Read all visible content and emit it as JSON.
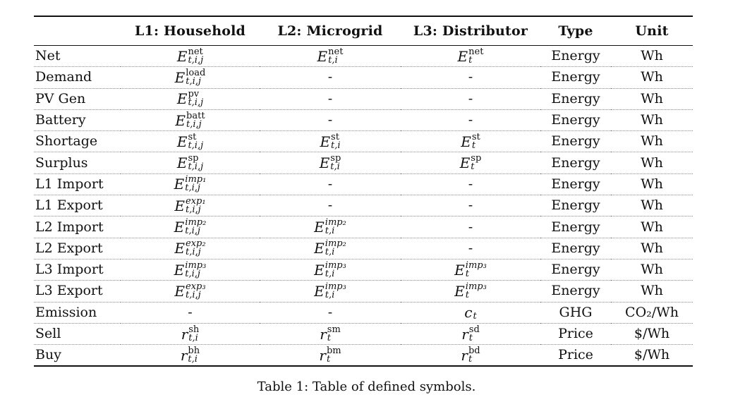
{
  "table": {
    "headers": [
      "",
      "L1: Household",
      "L2: Microgrid",
      "L3: Distributor",
      "Type",
      "Unit"
    ],
    "dash": "-",
    "rows": [
      {
        "label": "Net",
        "cells": [
          {
            "base": "E",
            "sup": "net",
            "sub": "t,i,j"
          },
          {
            "base": "E",
            "sup": "net",
            "sub": "t,i"
          },
          {
            "base": "E",
            "sup": "net",
            "sub": "t"
          }
        ],
        "type": "Energy",
        "unit": "Wh"
      },
      {
        "label": "Demand",
        "cells": [
          {
            "base": "E",
            "sup": "load",
            "sub": "t,i,j"
          },
          null,
          null
        ],
        "type": "Energy",
        "unit": "Wh"
      },
      {
        "label": "PV Gen",
        "cells": [
          {
            "base": "E",
            "sup": "pv",
            "sub": "t,i,j"
          },
          null,
          null
        ],
        "type": "Energy",
        "unit": "Wh"
      },
      {
        "label": "Battery",
        "cells": [
          {
            "base": "E",
            "sup": "batt",
            "sub": "t,i,j"
          },
          null,
          null
        ],
        "type": "Energy",
        "unit": "Wh"
      },
      {
        "label": "Shortage",
        "cells": [
          {
            "base": "E",
            "sup": "st",
            "sub": "t,i,j"
          },
          {
            "base": "E",
            "sup": "st",
            "sub": "t,i"
          },
          {
            "base": "E",
            "sup": "st",
            "sub": "t"
          }
        ],
        "type": "Energy",
        "unit": "Wh"
      },
      {
        "label": "Surplus",
        "cells": [
          {
            "base": "E",
            "sup": "sp",
            "sub": "t,i,j"
          },
          {
            "base": "E",
            "sup": "sp",
            "sub": "t,i"
          },
          {
            "base": "E",
            "sup": "sp",
            "sub": "t"
          }
        ],
        "type": "Energy",
        "unit": "Wh"
      },
      {
        "label": "L1 Import",
        "cells": [
          {
            "base": "E",
            "sup": "imp₁",
            "sub": "t,i,j",
            "italic_sup": true
          },
          null,
          null
        ],
        "type": "Energy",
        "unit": "Wh"
      },
      {
        "label": "L1 Export",
        "cells": [
          {
            "base": "E",
            "sup": "exp₁",
            "sub": "t,i,j",
            "italic_sup": true
          },
          null,
          null
        ],
        "type": "Energy",
        "unit": "Wh"
      },
      {
        "label": "L2 Import",
        "cells": [
          {
            "base": "E",
            "sup": "imp₂",
            "sub": "t,i,j",
            "italic_sup": true
          },
          {
            "base": "E",
            "sup": "imp₂",
            "sub": "t,i",
            "italic_sup": true
          },
          null
        ],
        "type": "Energy",
        "unit": "Wh"
      },
      {
        "label": "L2 Export",
        "cells": [
          {
            "base": "E",
            "sup": "exp₂",
            "sub": "t,i,j",
            "italic_sup": true
          },
          {
            "base": "E",
            "sup": "imp₂",
            "sub": "t,i",
            "italic_sup": true
          },
          null
        ],
        "type": "Energy",
        "unit": "Wh"
      },
      {
        "label": "L3 Import",
        "cells": [
          {
            "base": "E",
            "sup": "imp₃",
            "sub": "t,i,j",
            "italic_sup": true
          },
          {
            "base": "E",
            "sup": "imp₃",
            "sub": "t,i",
            "italic_sup": true
          },
          {
            "base": "E",
            "sup": "imp₃",
            "sub": "t",
            "italic_sup": true
          }
        ],
        "type": "Energy",
        "unit": "Wh"
      },
      {
        "label": "L3 Export",
        "cells": [
          {
            "base": "E",
            "sup": "exp₃",
            "sub": "t,i,j",
            "italic_sup": true
          },
          {
            "base": "E",
            "sup": "imp₃",
            "sub": "t,i",
            "italic_sup": true
          },
          {
            "base": "E",
            "sup": "imp₃",
            "sub": "t",
            "italic_sup": true
          }
        ],
        "type": "Energy",
        "unit": "Wh"
      },
      {
        "label": "Emission",
        "cells": [
          null,
          null,
          {
            "base": "c",
            "sup": "",
            "sub": "t"
          }
        ],
        "type": "GHG",
        "unit": "CO₂/Wh"
      },
      {
        "label": "Sell",
        "cells": [
          {
            "base": "r",
            "sup": "sh",
            "sub": "t,i"
          },
          {
            "base": "r",
            "sup": "sm",
            "sub": "t"
          },
          {
            "base": "r",
            "sup": "sd",
            "sub": "t"
          }
        ],
        "type": "Price",
        "unit": "$/Wh"
      },
      {
        "label": "Buy",
        "cells": [
          {
            "base": "r",
            "sup": "bh",
            "sub": "t,i"
          },
          {
            "base": "r",
            "sup": "bm",
            "sub": "t"
          },
          {
            "base": "r",
            "sup": "bd",
            "sub": "t"
          }
        ],
        "type": "Price",
        "unit": "$/Wh"
      }
    ]
  },
  "caption": "Table 1: Table of defined symbols."
}
